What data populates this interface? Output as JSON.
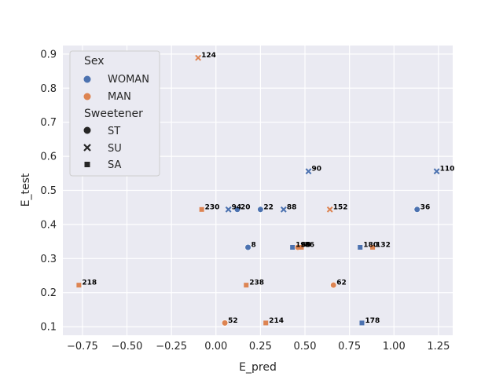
{
  "chart_data": {
    "type": "scatter",
    "xlabel": "E_pred",
    "ylabel": "E_test",
    "xlim": [
      -0.86,
      1.33
    ],
    "ylim": [
      0.075,
      0.925
    ],
    "xticks": [
      -0.75,
      -0.5,
      -0.25,
      0.0,
      0.25,
      0.5,
      0.75,
      1.0,
      1.25
    ],
    "xtick_labels": [
      "−0.75",
      "−0.50",
      "−0.25",
      "0.00",
      "0.25",
      "0.50",
      "0.75",
      "1.00",
      "1.25"
    ],
    "yticks": [
      0.1,
      0.2,
      0.3,
      0.4,
      0.5,
      0.6,
      0.7,
      0.8,
      0.9
    ],
    "ytick_labels": [
      "0.1",
      "0.2",
      "0.3",
      "0.4",
      "0.5",
      "0.6",
      "0.7",
      "0.8",
      "0.9"
    ],
    "grid": true,
    "background": "#eaeaf2",
    "colors": {
      "WOMAN": "#4c72b0",
      "MAN": "#dd8452"
    },
    "legend": {
      "placement": "top-left",
      "hue_title": "Sex",
      "hue_items": [
        "WOMAN",
        "MAN"
      ],
      "style_title": "Sweetener",
      "style_items": [
        "ST",
        "SU",
        "SA"
      ],
      "markers": {
        "ST": "circle",
        "SU": "x",
        "SA": "square"
      }
    },
    "points": [
      {
        "label": "124",
        "x": -0.1,
        "y": 0.889,
        "sex": "MAN",
        "sweetener": "SU"
      },
      {
        "label": "230",
        "x": -0.08,
        "y": 0.444,
        "sex": "MAN",
        "sweetener": "SA"
      },
      {
        "label": "94",
        "x": 0.07,
        "y": 0.444,
        "sex": "WOMAN",
        "sweetener": "SU"
      },
      {
        "label": "20",
        "x": 0.12,
        "y": 0.444,
        "sex": "WOMAN",
        "sweetener": "ST"
      },
      {
        "label": "22",
        "x": 0.25,
        "y": 0.444,
        "sex": "WOMAN",
        "sweetener": "ST"
      },
      {
        "label": "88",
        "x": 0.38,
        "y": 0.444,
        "sex": "WOMAN",
        "sweetener": "SU"
      },
      {
        "label": "152",
        "x": 0.64,
        "y": 0.444,
        "sex": "MAN",
        "sweetener": "SU"
      },
      {
        "label": "36",
        "x": 1.13,
        "y": 0.444,
        "sex": "WOMAN",
        "sweetener": "ST"
      },
      {
        "label": "90",
        "x": 0.52,
        "y": 0.556,
        "sex": "WOMAN",
        "sweetener": "SU"
      },
      {
        "label": "110",
        "x": 1.24,
        "y": 0.556,
        "sex": "WOMAN",
        "sweetener": "SU"
      },
      {
        "label": "8",
        "x": 0.18,
        "y": 0.333,
        "sex": "WOMAN",
        "sweetener": "ST"
      },
      {
        "label": "196",
        "x": 0.43,
        "y": 0.333,
        "sex": "WOMAN",
        "sweetener": "SA"
      },
      {
        "label": "68",
        "x": 0.46,
        "y": 0.333,
        "sex": "MAN",
        "sweetener": "ST"
      },
      {
        "label": "86",
        "x": 0.48,
        "y": 0.333,
        "sex": "MAN",
        "sweetener": "SA"
      },
      {
        "label": "180",
        "x": 0.81,
        "y": 0.333,
        "sex": "WOMAN",
        "sweetener": "SA"
      },
      {
        "label": "132",
        "x": 0.88,
        "y": 0.333,
        "sex": "MAN",
        "sweetener": "SA"
      },
      {
        "label": "218",
        "x": -0.77,
        "y": 0.222,
        "sex": "MAN",
        "sweetener": "SA"
      },
      {
        "label": "238",
        "x": 0.17,
        "y": 0.222,
        "sex": "MAN",
        "sweetener": "SA"
      },
      {
        "label": "62",
        "x": 0.66,
        "y": 0.222,
        "sex": "MAN",
        "sweetener": "ST"
      },
      {
        "label": "52",
        "x": 0.05,
        "y": 0.111,
        "sex": "MAN",
        "sweetener": "ST"
      },
      {
        "label": "214",
        "x": 0.28,
        "y": 0.111,
        "sex": "MAN",
        "sweetener": "SA"
      },
      {
        "label": "178",
        "x": 0.82,
        "y": 0.111,
        "sex": "WOMAN",
        "sweetener": "SA"
      }
    ]
  }
}
